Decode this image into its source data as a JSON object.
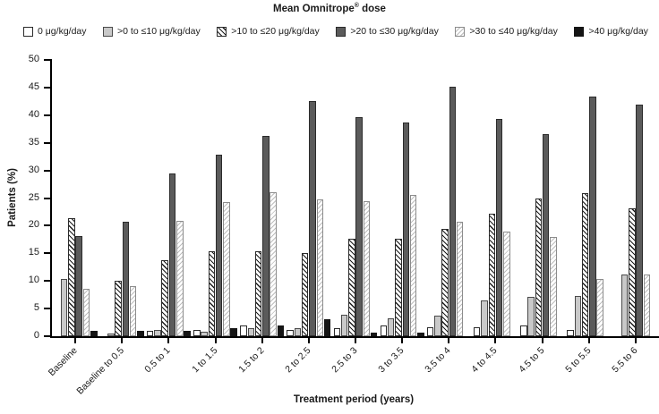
{
  "title": {
    "pre": "Mean Omnitrope",
    "sup": "®",
    "post": " dose"
  },
  "legend": [
    {
      "label": "0 μg/kg/day",
      "swatch": "white"
    },
    {
      "label": ">0 to ≤10 μg/kg/day",
      "swatch": "lightgray"
    },
    {
      "label": ">10 to ≤20 μg/kg/day",
      "swatch": "hatch-dark"
    },
    {
      "label": ">20 to ≤30 μg/kg/day",
      "swatch": "darkgray"
    },
    {
      "label": ">30 to ≤40 μg/kg/day",
      "swatch": "hatch-light"
    },
    {
      "label": ">40 μg/kg/day",
      "swatch": "black"
    }
  ],
  "colors": {
    "bar_dark_gray": "#5b5b5b",
    "bar_light_gray": "#c9c9c9",
    "bar_black": "#151515",
    "bar_white": "#ffffff",
    "hatch_dark_line": "#1c1c1c",
    "hatch_light_line": "#bdbdbd",
    "axis": "#000000",
    "text": "#1a1a1a"
  },
  "chart_data": {
    "type": "bar",
    "title": "Mean Omnitrope® dose",
    "xlabel": "Treatment period (years)",
    "ylabel": "Patients (%)",
    "ylim": [
      0,
      50
    ],
    "ytick_step": 5,
    "grid": false,
    "legend_position": "top",
    "categories": [
      "Baseline",
      "Baseline to 0.5",
      "0.5 to 1",
      "1 to 1.5",
      "1.5 to 2",
      "2 to 2.5",
      "2.5 to 3",
      "3 to 3.5",
      "3.5 to 4",
      "4 to 4.5",
      "4.5 to 5",
      "5 to 5.5",
      "5.5 to 6"
    ],
    "series": [
      {
        "name": "0 μg/kg/day",
        "style": "white",
        "values": [
          0,
          0,
          1.0,
          1.1,
          1.9,
          1.2,
          1.4,
          2.0,
          1.6,
          1.7,
          1.9,
          1.2,
          0
        ]
      },
      {
        "name": ">0 to ≤10 μg/kg/day",
        "style": "lightgray",
        "values": [
          10.3,
          0.5,
          1.1,
          0.8,
          1.5,
          1.5,
          3.9,
          3.3,
          3.7,
          6.4,
          7.2,
          7.3,
          11.1
        ]
      },
      {
        "name": ">10 to ≤20 μg/kg/day",
        "style": "hatch-dark",
        "values": [
          21.3,
          10.0,
          13.7,
          15.4,
          15.4,
          15.1,
          17.7,
          17.7,
          19.5,
          22.1,
          25.0,
          25.9,
          23.2
        ]
      },
      {
        "name": ">20 to ≤30 μg/kg/day",
        "style": "darkgray",
        "values": [
          18.2,
          20.7,
          29.4,
          32.8,
          36.2,
          42.5,
          39.7,
          38.6,
          45.1,
          39.4,
          36.6,
          43.4,
          41.9
        ]
      },
      {
        "name": ">30 to ≤40 μg/kg/day",
        "style": "hatch-light",
        "values": [
          8.5,
          9.0,
          20.9,
          24.3,
          26.0,
          24.7,
          24.5,
          25.5,
          20.7,
          19.0,
          18.0,
          10.4,
          11.1
        ]
      },
      {
        "name": ">40 μg/kg/day",
        "style": "black",
        "values": [
          1.0,
          1.0,
          1.0,
          1.4,
          2.0,
          3.0,
          0.7,
          0.7,
          0,
          0,
          0,
          0,
          0
        ]
      }
    ]
  }
}
